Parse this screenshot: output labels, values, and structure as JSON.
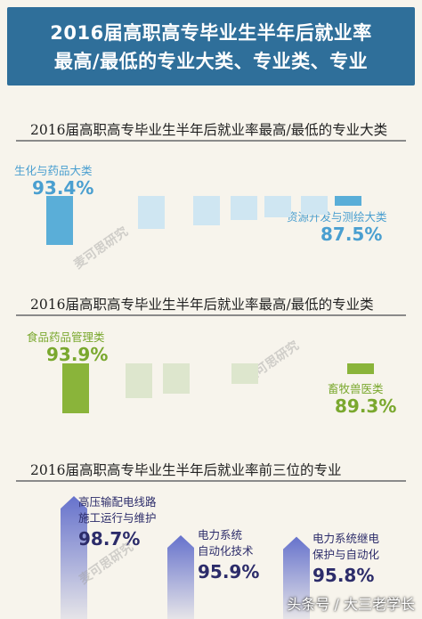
{
  "header": {
    "line1": "2016届高职高专毕业生半年后就业率",
    "line2": "最高/最低的专业大类、专业类、专业"
  },
  "colors": {
    "header_bg": "#2f6f9a",
    "s1_highlight": "#5aaed8",
    "s1_muted": "#cfe6f2",
    "s2_highlight": "#8ab43a",
    "s2_muted": "#dde6cd",
    "s3_bar": "#6672cc",
    "s3_text": "#2c2c6a"
  },
  "watermark_text": "麦可思研究",
  "footer_text": "头条号 / 大三老学长",
  "chart_data": [
    {
      "type": "bar",
      "title": "2016届高职高专毕业生半年后就业率最高/最低的专业大类",
      "highest": {
        "label": "生化与药品大类",
        "value_text": "93.4%",
        "value": 93.4
      },
      "lowest": {
        "label": "资源开发与测绘大类",
        "value_text": "87.5%",
        "value": 87.5
      },
      "values": [
        93.4,
        91.0,
        90.4,
        89.7,
        89.3,
        88.8,
        87.5
      ],
      "ylim": [
        86,
        94.5
      ]
    },
    {
      "type": "bar",
      "title": "2016届高职高专毕业生半年后就业率最高/最低的专业类",
      "highest": {
        "label": "食品药品管理类",
        "value_text": "93.9%",
        "value": 93.9
      },
      "lowest": {
        "label": "畜牧兽医类",
        "value_text": "89.3%",
        "value": 89.3
      },
      "values": [
        93.9,
        92.1,
        91.6,
        90.4,
        89.3
      ],
      "ylim": [
        88,
        94.5
      ]
    },
    {
      "type": "bar",
      "title": "2016届高职高专毕业生半年后就业率前三位的专业",
      "categories": [
        "高压输配电线路施工运行与维护",
        "电力系统自动化技术",
        "电力系统继电保护与自动化"
      ],
      "label_lines": [
        [
          "高压输配电线路",
          "施工运行与维护"
        ],
        [
          "电力系统",
          "自动化技术"
        ],
        [
          "电力系统继电",
          "保护与自动化"
        ]
      ],
      "value_texts": [
        "98.7%",
        "95.9%",
        "95.8%"
      ],
      "values": [
        98.7,
        95.9,
        95.8
      ]
    }
  ]
}
